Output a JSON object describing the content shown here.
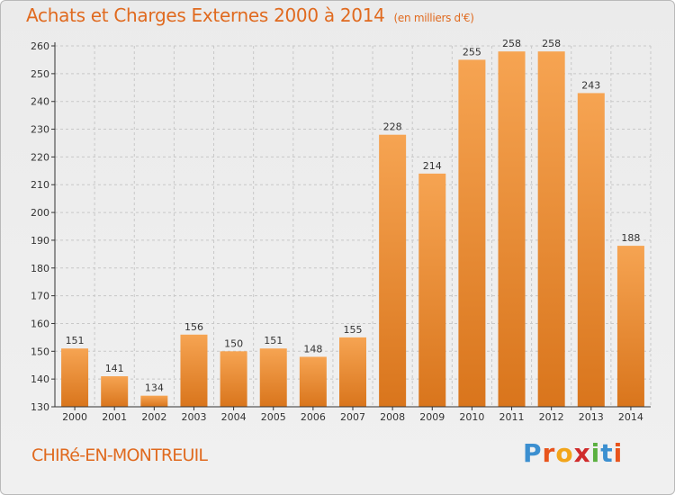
{
  "header": {
    "title": "Achats et Charges Externes 2000 à 2014",
    "subtitle": "(en milliers d'€)"
  },
  "footer": {
    "commune": "CHIRé-EN-MONTREUIL",
    "logo_letters": [
      "P",
      "r",
      "o",
      "x",
      "i",
      "t",
      "i"
    ],
    "logo_colors": [
      "#3b8fd0",
      "#e8541c",
      "#f2a51a",
      "#d02b2b",
      "#5bb040",
      "#3b8fd0",
      "#e8541c"
    ]
  },
  "colors": {
    "bar_top": "#f6a452",
    "bar_bottom": "#d9751c",
    "grid": "#c8c8c8",
    "axis": "#333333"
  },
  "chart_data": {
    "type": "bar",
    "title": "Achats et Charges Externes 2000 à 2014",
    "subtitle": "(en milliers d'€)",
    "categories": [
      "2000",
      "2001",
      "2002",
      "2003",
      "2004",
      "2005",
      "2006",
      "2007",
      "2008",
      "2009",
      "2010",
      "2011",
      "2012",
      "2013",
      "2014"
    ],
    "values": [
      151,
      141,
      134,
      156,
      150,
      151,
      148,
      155,
      228,
      214,
      255,
      258,
      258,
      243,
      188
    ],
    "ylim": [
      130,
      260
    ],
    "yticks": [
      130,
      140,
      150,
      160,
      170,
      180,
      190,
      200,
      210,
      220,
      230,
      240,
      250,
      260
    ],
    "grid": true
  }
}
